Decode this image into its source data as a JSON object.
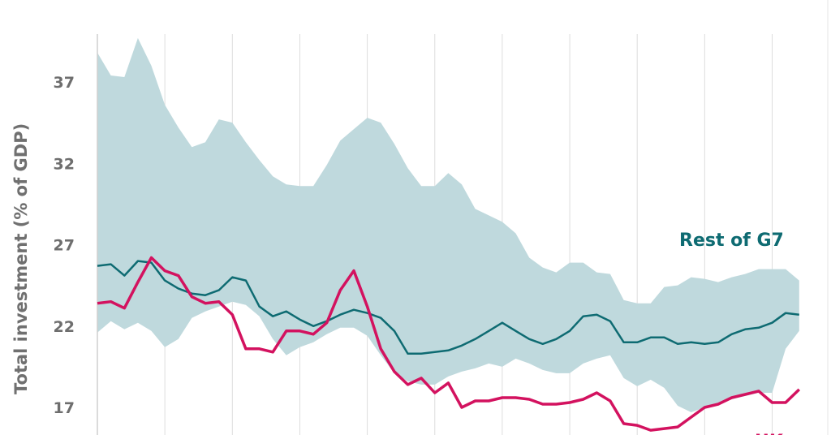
{
  "chart_data": {
    "type": "line",
    "title": "",
    "xlabel": "",
    "ylabel": "Total investment (% of GDP)",
    "ylim": [
      15.8,
      39.8
    ],
    "yticks": [
      17,
      22,
      27,
      32,
      37
    ],
    "grid": {
      "vertical": true,
      "horizontal": false
    },
    "colors": {
      "band": "#bfd9dd",
      "rest_of_g7": "#0e6b72",
      "uk": "#d3125f",
      "grid": "#dddddd",
      "text": "#6e6e6e"
    },
    "x": [
      0,
      1,
      2,
      3,
      4,
      5,
      6,
      7,
      8,
      9,
      10,
      11,
      12,
      13,
      14,
      15,
      16,
      17,
      18,
      19,
      20,
      21,
      22,
      23,
      24,
      25,
      26,
      27,
      28,
      29,
      30,
      31,
      32,
      33,
      34,
      35,
      36,
      37,
      38,
      39,
      40,
      41,
      42,
      43,
      44,
      45,
      46,
      47,
      48,
      49,
      50,
      51,
      52
    ],
    "band": {
      "upper": [
        38.8,
        37.4,
        37.3,
        39.7,
        38.0,
        35.6,
        34.2,
        33.0,
        33.3,
        34.7,
        34.5,
        33.3,
        32.2,
        31.2,
        30.7,
        30.6,
        30.6,
        31.9,
        33.4,
        34.1,
        34.8,
        34.5,
        33.2,
        31.7,
        30.6,
        30.6,
        31.4,
        30.7,
        29.2,
        28.8,
        28.4,
        27.7,
        26.2,
        25.6,
        25.3,
        25.9,
        25.9,
        25.3,
        25.2,
        23.6,
        23.4,
        23.4,
        24.4,
        24.5,
        25.0,
        24.9,
        24.7,
        25.0,
        25.2,
        25.5,
        25.5,
        25.5,
        24.8
      ],
      "lower": [
        21.6,
        22.3,
        21.8,
        22.2,
        21.7,
        20.7,
        21.2,
        22.5,
        22.9,
        23.2,
        23.5,
        23.3,
        22.6,
        21.2,
        20.2,
        20.7,
        21.0,
        21.5,
        21.9,
        21.9,
        21.4,
        20.2,
        19.1,
        18.6,
        18.4,
        18.4,
        18.9,
        19.2,
        19.4,
        19.7,
        19.5,
        20.0,
        19.7,
        19.3,
        19.1,
        19.1,
        19.7,
        20.0,
        20.2,
        18.8,
        18.3,
        18.7,
        18.2,
        17.1,
        16.7,
        17.0,
        17.2,
        17.5,
        17.7,
        17.9,
        17.9,
        20.6,
        21.7
      ]
    },
    "series": [
      {
        "name": "Rest of G7",
        "values": [
          25.7,
          25.8,
          25.1,
          26.0,
          25.9,
          24.8,
          24.3,
          24.0,
          23.9,
          24.2,
          25.0,
          24.8,
          23.2,
          22.6,
          22.9,
          22.4,
          22.0,
          22.3,
          22.7,
          23.0,
          22.8,
          22.5,
          21.7,
          20.3,
          20.3,
          20.4,
          20.5,
          20.8,
          21.2,
          21.7,
          22.2,
          21.7,
          21.2,
          20.9,
          21.2,
          21.7,
          22.6,
          22.7,
          22.3,
          21.0,
          21.0,
          21.3,
          21.3,
          20.9,
          21.0,
          20.9,
          21.0,
          21.5,
          21.8,
          21.9,
          22.2,
          22.8,
          22.7
        ]
      },
      {
        "name": "UK",
        "values": [
          23.4,
          23.5,
          23.1,
          24.7,
          26.2,
          25.4,
          25.1,
          23.8,
          23.4,
          23.5,
          22.7,
          20.6,
          20.6,
          20.4,
          21.7,
          21.7,
          21.5,
          22.2,
          24.2,
          25.4,
          23.2,
          20.6,
          19.2,
          18.4,
          18.8,
          17.9,
          18.5,
          17.0,
          17.4,
          17.4,
          17.6,
          17.6,
          17.5,
          17.2,
          17.2,
          17.3,
          17.5,
          17.9,
          17.4,
          16.0,
          15.9,
          15.6,
          15.7,
          15.8,
          16.4,
          17.0,
          17.2,
          17.6,
          17.8,
          18.0,
          17.3,
          17.3,
          18.1
        ]
      }
    ]
  }
}
